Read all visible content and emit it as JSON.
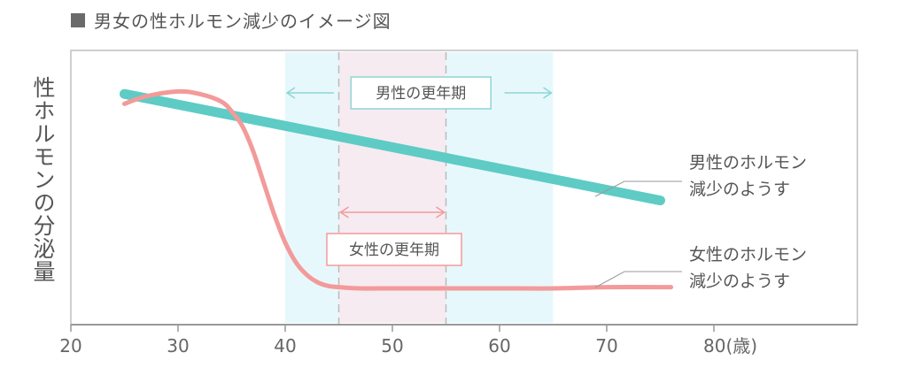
{
  "chart_data": {
    "type": "line",
    "title": "男女の性ホルモン減少のイメージ図",
    "ylabel": "性ホルモンの分泌量",
    "xlim": [
      20,
      90
    ],
    "x_ticks": [
      {
        "value": 20,
        "label": "20"
      },
      {
        "value": 30,
        "label": "30"
      },
      {
        "value": 40,
        "label": "40"
      },
      {
        "value": 50,
        "label": "50"
      },
      {
        "value": 60,
        "label": "60"
      },
      {
        "value": 70,
        "label": "70"
      },
      {
        "value": 80,
        "label": "80(歳)"
      }
    ],
    "series": [
      {
        "color": "#5ecbc5",
        "x": [
          25,
          75
        ],
        "y": [
          0.86,
          0.43
        ],
        "label": "男性のホルモン\n減少のようす"
      },
      {
        "color": "#f39a9a",
        "x": [
          25,
          27,
          30,
          32,
          34,
          35,
          36,
          37,
          38,
          39,
          40,
          41,
          42,
          43,
          44,
          45,
          47,
          50,
          55,
          60,
          65,
          70,
          76
        ],
        "y": [
          0.82,
          0.85,
          0.87,
          0.86,
          0.83,
          0.79,
          0.73,
          0.63,
          0.5,
          0.37,
          0.26,
          0.18,
          0.13,
          0.1,
          0.085,
          0.08,
          0.075,
          0.075,
          0.075,
          0.075,
          0.075,
          0.08,
          0.08
        ],
        "label": "女性のホルモン\n減少のようす"
      }
    ],
    "bands": [
      {
        "label": "男性の更年期",
        "from": 40,
        "to": 65,
        "color": "#e7f8fc",
        "arrow_color": "#8ed6d4"
      },
      {
        "label": "女性の更年期",
        "from": 45,
        "to": 55,
        "color": "#f6ebf1",
        "arrow_color": "#f39a9a"
      }
    ]
  }
}
